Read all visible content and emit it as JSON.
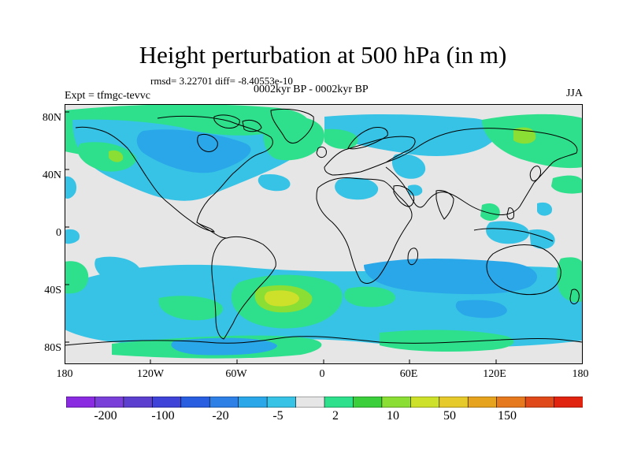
{
  "title": "Height perturbation at 500 hPa (in m)",
  "stats_line": "rmsd= 3.22701 diff= -8.40553e-10",
  "period": "0002kyr BP - 0002kyr BP",
  "experiment": "Expt = tfmgc-tevvc",
  "season": "JJA",
  "lat_labels": [
    "80N",
    "40N",
    "0",
    "40S",
    "80S"
  ],
  "lon_labels": [
    "180",
    "120W",
    "60W",
    "0",
    "60E",
    "120E",
    "180"
  ],
  "colorbar": {
    "colors": [
      "#8a2be2",
      "#7b3fd9",
      "#5d3fcf",
      "#3f43d8",
      "#2a5ee0",
      "#2e7fe6",
      "#2aa7e8",
      "#36c3e6",
      "#e6e6e6",
      "#2ee08c",
      "#3ccf3c",
      "#8ade34",
      "#cde02a",
      "#e6c92a",
      "#e6a41e",
      "#e6781e",
      "#e04a1a",
      "#e02410"
    ],
    "labels": [
      "-200",
      "-100",
      "-20",
      "-5",
      "2",
      "10",
      "50",
      "150"
    ]
  },
  "fill_colors": {
    "background": "#e6e6e6",
    "blue_light": "#36c3e6",
    "blue_mid": "#2aa7e8",
    "blue_deep": "#2e7fe6",
    "green": "#2ee08c",
    "green_mid": "#3ccf3c",
    "yellow_green": "#8ade34",
    "yellow": "#cde02a"
  }
}
